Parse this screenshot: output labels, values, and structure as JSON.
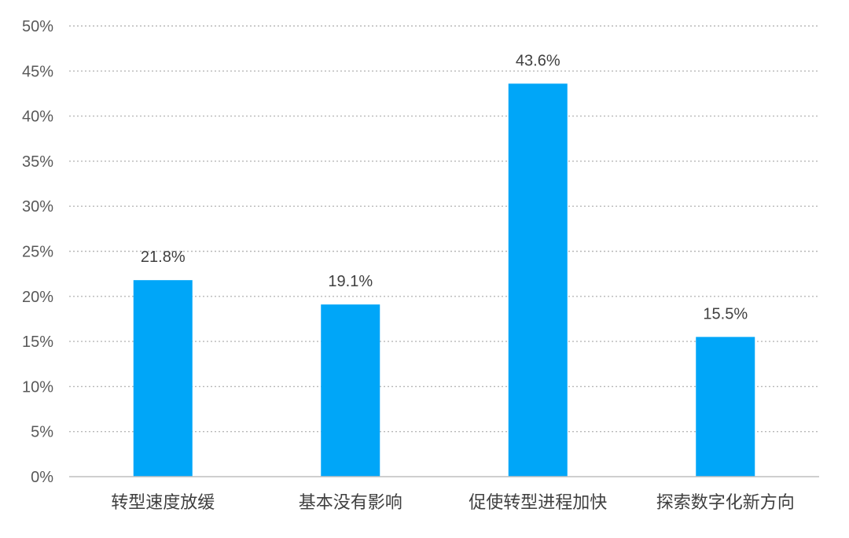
{
  "colors": {
    "bar": "#00a6f8",
    "grid": "#b8b8b8",
    "axis": "#bfbfbf",
    "text": "#404040"
  },
  "chart_data": {
    "type": "bar",
    "categories": [
      "转型速度放缓",
      "基本没有影响",
      "促使转型进程加快",
      "探索数字化新方向"
    ],
    "values": [
      21.8,
      19.1,
      43.6,
      15.5
    ],
    "value_labels": [
      "21.8%",
      "19.1%",
      "43.6%",
      "15.5%"
    ],
    "yticks": [
      0,
      5,
      10,
      15,
      20,
      25,
      30,
      35,
      40,
      45,
      50
    ],
    "ytick_labels": [
      "0%",
      "5%",
      "10%",
      "15%",
      "20%",
      "25%",
      "30%",
      "35%",
      "40%",
      "45%",
      "50%"
    ],
    "ylim": [
      0,
      50
    ],
    "grid": true,
    "legend": "none",
    "title": "",
    "xlabel": "",
    "ylabel": ""
  }
}
